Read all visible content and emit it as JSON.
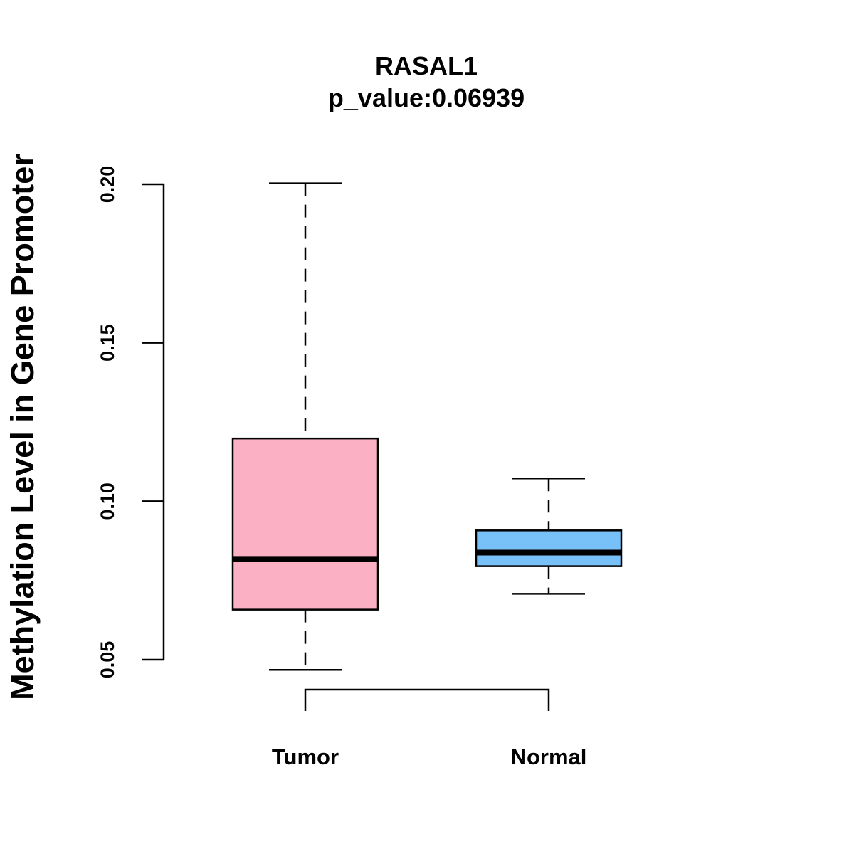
{
  "chart_data": {
    "type": "boxplot",
    "title": "RASAL1",
    "subtitle": "p_value:0.06939",
    "xlabel": "",
    "ylabel": "Methylation Level in Gene Promoter",
    "ylim": [
      0.05,
      0.2
    ],
    "yticks": [
      0.05,
      0.1,
      0.15,
      0.2
    ],
    "ytick_labels": [
      "0.05",
      "0.10",
      "0.15",
      "0.20"
    ],
    "grid": false,
    "categories": [
      "Tumor",
      "Normal"
    ],
    "series": [
      {
        "name": "Tumor",
        "color": "#FBB1C3",
        "whisker_low": 0.0468,
        "q1": 0.0658,
        "median": 0.0818,
        "q3": 0.1198,
        "whisker_high": 0.2003
      },
      {
        "name": "Normal",
        "color": "#78C1F8",
        "whisker_low": 0.0708,
        "q1": 0.0795,
        "median": 0.0838,
        "q3": 0.0908,
        "whisker_high": 0.1072
      }
    ],
    "significance_bracket": {
      "from": "Tumor",
      "to": "Normal"
    }
  }
}
